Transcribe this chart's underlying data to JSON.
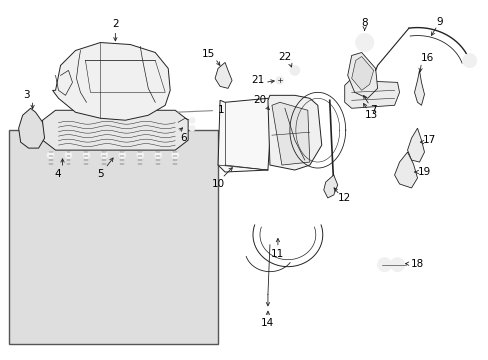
{
  "bg_color": "#ffffff",
  "box_bg": "#e8e8e8",
  "lc": "#222222",
  "text_color": "#000000",
  "fs": 7.5,
  "fig_w": 4.89,
  "fig_h": 3.6,
  "dpi": 100,
  "xlim": [
    0,
    489
  ],
  "ylim": [
    0,
    360
  ]
}
